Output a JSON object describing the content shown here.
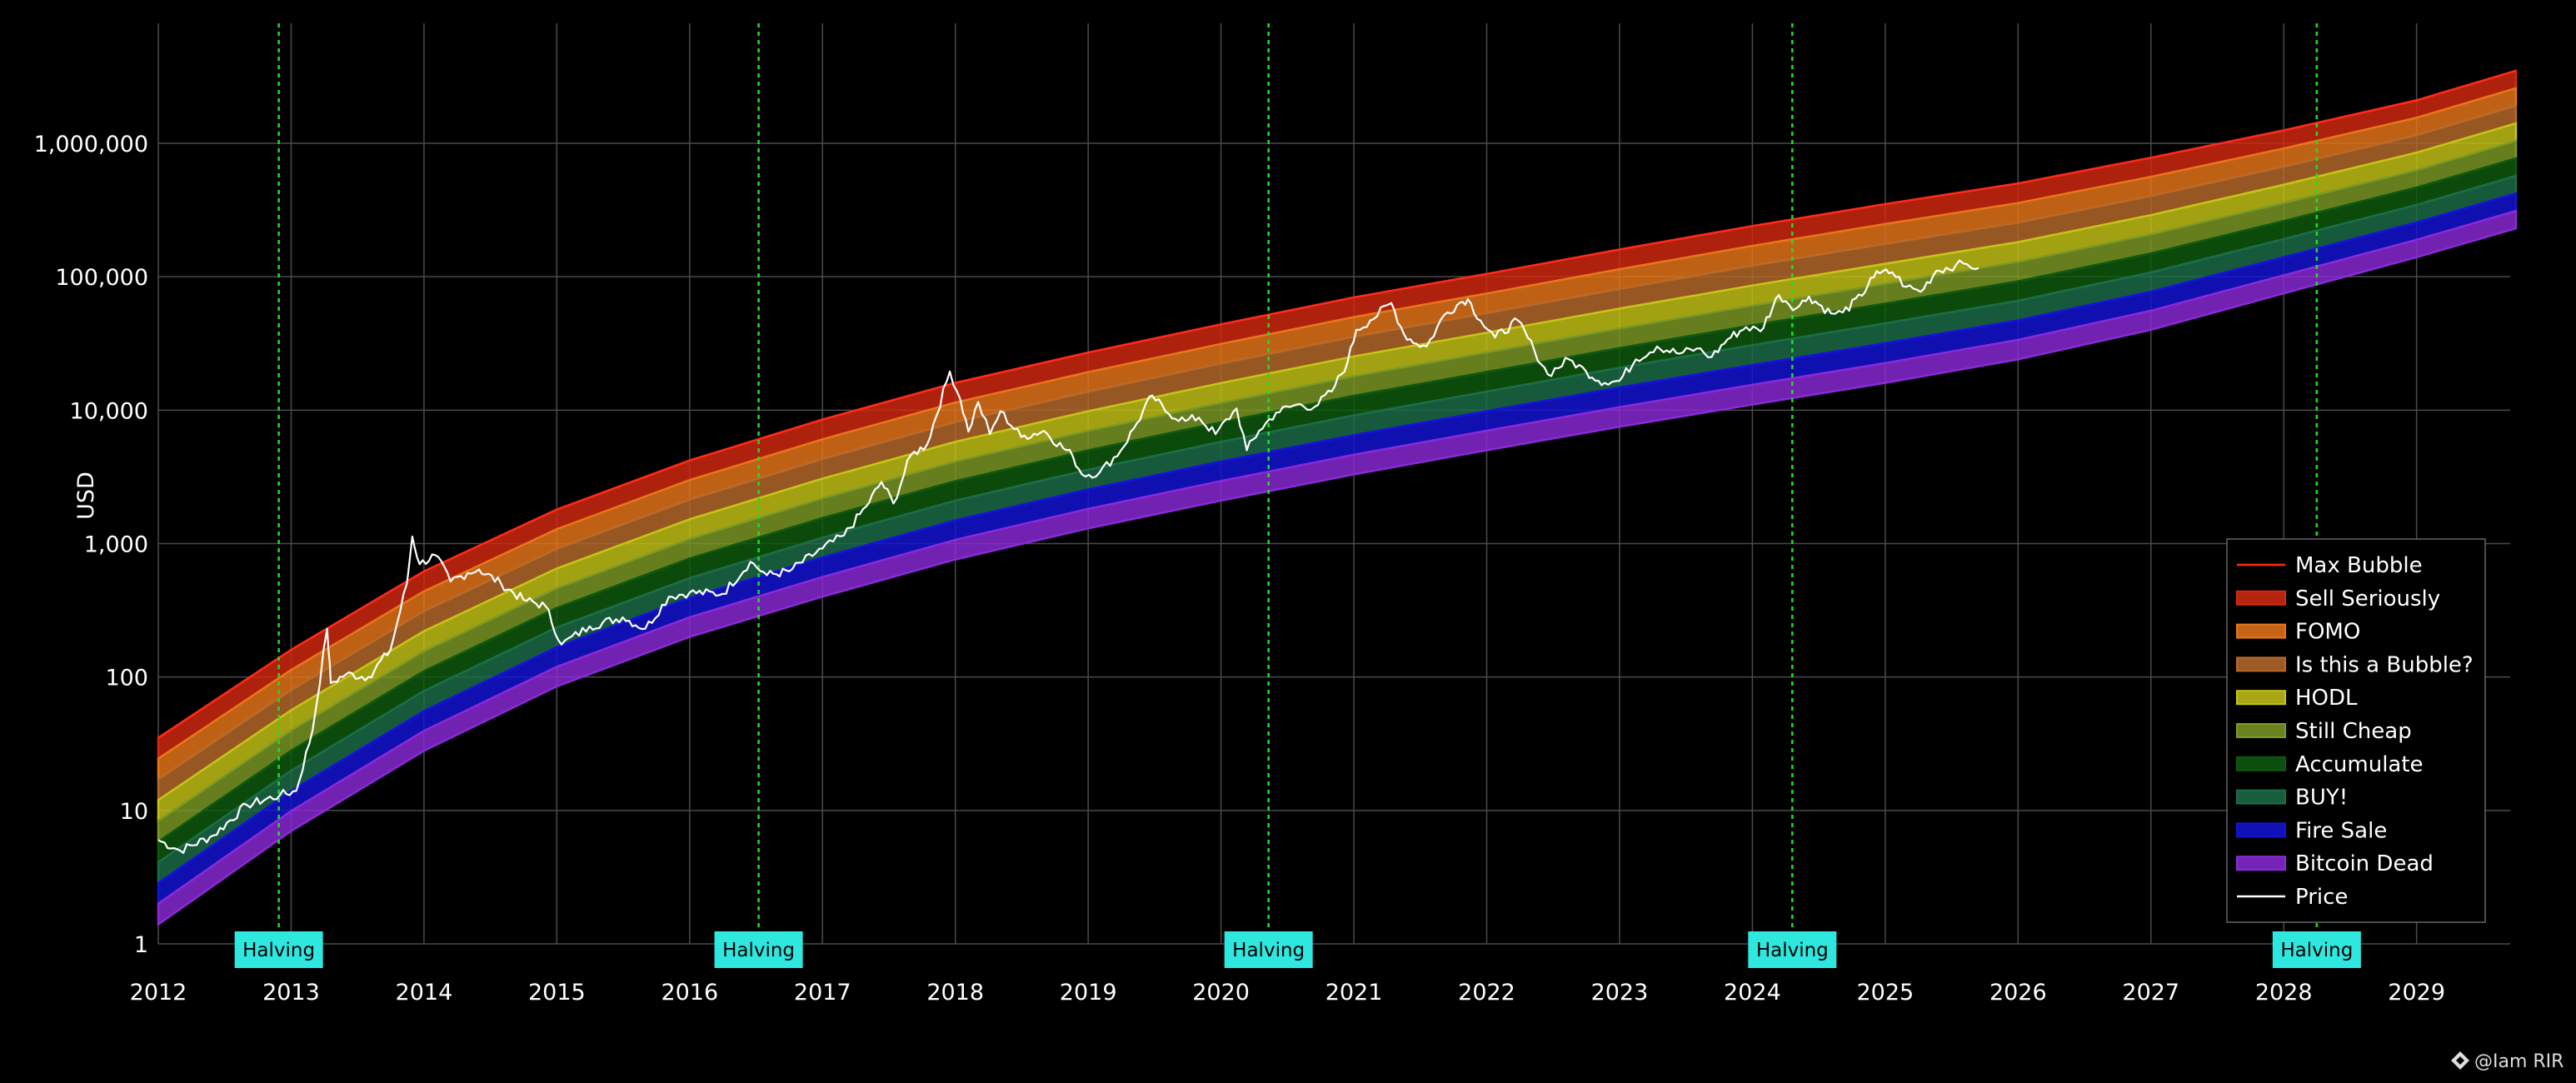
{
  "chart_data": {
    "type": "line",
    "title": "",
    "xlabel": "",
    "ylabel": "USD",
    "y_scale": "log",
    "x_range": [
      "2012-01-01",
      "2029-10-01"
    ],
    "ylim": [
      1,
      5000000
    ],
    "grid": true,
    "background": "#000000",
    "x_ticks": [
      "2012",
      "2013",
      "2014",
      "2015",
      "2016",
      "2017",
      "2018",
      "2019",
      "2020",
      "2021",
      "2022",
      "2023",
      "2024",
      "2025",
      "2026",
      "2027",
      "2028",
      "2029"
    ],
    "y_ticks": [
      {
        "value": 1,
        "label": "1"
      },
      {
        "value": 10,
        "label": "10"
      },
      {
        "value": 100,
        "label": "100"
      },
      {
        "value": 1000,
        "label": "1,000"
      },
      {
        "value": 10000,
        "label": "10,000"
      },
      {
        "value": 100000,
        "label": "100,000"
      },
      {
        "value": 1000000,
        "label": "1,000,000"
      }
    ],
    "halvings": [
      {
        "date": "2012-11-28",
        "label": "Halving"
      },
      {
        "date": "2016-07-09",
        "label": "Halving"
      },
      {
        "date": "2020-05-11",
        "label": "Halving"
      },
      {
        "date": "2024-04-20",
        "label": "Halving"
      },
      {
        "date": "2028-04-01",
        "label": "Halving"
      }
    ],
    "halving_line_color": "#22dd22",
    "halving_label_color": "#2ee8e0",
    "bands_x": [
      "2012-01-01",
      "2013-01-01",
      "2014-01-01",
      "2015-01-01",
      "2016-01-01",
      "2017-01-01",
      "2018-01-01",
      "2019-01-01",
      "2020-01-01",
      "2021-01-01",
      "2022-01-01",
      "2023-01-01",
      "2024-01-01",
      "2025-01-01",
      "2026-01-01",
      "2027-01-01",
      "2028-01-01",
      "2029-01-01",
      "2029-10-01"
    ],
    "bands_y_bottom": [
      1.4,
      7,
      28,
      85,
      200,
      400,
      760,
      1300,
      2100,
      3300,
      5000,
      7500,
      11000,
      16000,
      24000,
      40000,
      75000,
      140000,
      230000
    ],
    "bands_y_top": [
      35,
      160,
      620,
      1800,
      4200,
      8500,
      16000,
      27000,
      44000,
      70000,
      105000,
      160000,
      240000,
      350000,
      500000,
      780000,
      1250000,
      2100000,
      3500000
    ],
    "series": [
      {
        "name": "Max Bubble",
        "color": "#ff2a1a",
        "kind": "line"
      },
      {
        "name": "Sell Seriously",
        "color": "#d42a10",
        "kind": "band"
      },
      {
        "name": "FOMO",
        "color": "#e8761a",
        "kind": "band"
      },
      {
        "name": "Is this a Bubble?",
        "color": "#b86a2a",
        "kind": "band"
      },
      {
        "name": "HODL",
        "color": "#c6c416",
        "kind": "band"
      },
      {
        "name": "Still Cheap",
        "color": "#7d9a24",
        "kind": "band"
      },
      {
        "name": "Accumulate",
        "color": "#0f5a0f",
        "kind": "band"
      },
      {
        "name": "BUY!",
        "color": "#1c6e48",
        "kind": "band"
      },
      {
        "name": "Fire Sale",
        "color": "#1414d8",
        "kind": "band"
      },
      {
        "name": "Bitcoin Dead",
        "color": "#8a2ad8",
        "kind": "band"
      },
      {
        "name": "Price",
        "color": "#ffffff",
        "kind": "price",
        "x": [
          "2012-01-01",
          "2012-03-01",
          "2012-06-01",
          "2012-09-01",
          "2012-12-01",
          "2013-01-15",
          "2013-03-01",
          "2013-04-10",
          "2013-04-20",
          "2013-06-01",
          "2013-08-01",
          "2013-10-01",
          "2013-11-15",
          "2013-11-30",
          "2013-12-20",
          "2014-02-01",
          "2014-03-15",
          "2014-05-01",
          "2014-06-01",
          "2014-08-01",
          "2014-10-01",
          "2014-12-01",
          "2015-01-14",
          "2015-04-01",
          "2015-07-01",
          "2015-09-01",
          "2015-11-05",
          "2016-01-01",
          "2016-04-01",
          "2016-06-16",
          "2016-08-01",
          "2016-10-01",
          "2017-01-01",
          "2017-03-01",
          "2017-05-01",
          "2017-06-12",
          "2017-07-15",
          "2017-09-01",
          "2017-10-15",
          "2017-12-17",
          "2018-01-15",
          "2018-02-06",
          "2018-03-05",
          "2018-04-06",
          "2018-05-05",
          "2018-07-01",
          "2018-09-01",
          "2018-11-20",
          "2018-12-15",
          "2019-02-01",
          "2019-04-01",
          "2019-05-15",
          "2019-06-26",
          "2019-08-01",
          "2019-09-25",
          "2019-11-01",
          "2019-12-17",
          "2020-02-13",
          "2020-03-12",
          "2020-04-15",
          "2020-06-01",
          "2020-07-27",
          "2020-09-15",
          "2020-11-01",
          "2020-12-15",
          "2021-01-08",
          "2021-02-15",
          "2021-04-14",
          "2021-05-19",
          "2021-06-22",
          "2021-07-20",
          "2021-09-07",
          "2021-10-20",
          "2021-11-10",
          "2021-12-15",
          "2022-01-24",
          "2022-03-28",
          "2022-05-12",
          "2022-06-18",
          "2022-08-15",
          "2022-10-01",
          "2022-11-21",
          "2023-01-01",
          "2023-02-15",
          "2023-04-14",
          "2023-06-15",
          "2023-08-01",
          "2023-09-11",
          "2023-10-25",
          "2023-12-15",
          "2024-01-23",
          "2024-03-14",
          "2024-05-01",
          "2024-06-05",
          "2024-08-05",
          "2024-09-06",
          "2024-10-29",
          "2024-11-22",
          "2024-12-17",
          "2025-01-20",
          "2025-02-28",
          "2025-04-08",
          "2025-05-22",
          "2025-07-14",
          "2025-08-14",
          "2025-09-15"
        ],
        "y": [
          6,
          5,
          6.5,
          11,
          13,
          14,
          40,
          230,
          90,
          105,
          100,
          160,
          500,
          1130,
          700,
          820,
          520,
          600,
          640,
          500,
          380,
          340,
          175,
          240,
          280,
          230,
          400,
          430,
          420,
          730,
          580,
          620,
          920,
          1150,
          1900,
          2900,
          2000,
          4600,
          5500,
          19500,
          12000,
          6900,
          11500,
          6600,
          9800,
          6300,
          7000,
          4500,
          3300,
          3400,
          5000,
          8000,
          12900,
          9800,
          8300,
          8800,
          6600,
          10300,
          5000,
          7000,
          9600,
          11000,
          10600,
          13800,
          23000,
          40000,
          47000,
          63500,
          37000,
          31500,
          30000,
          52000,
          64000,
          68000,
          47000,
          35000,
          47000,
          28000,
          18500,
          24000,
          19500,
          16000,
          16600,
          24000,
          30000,
          26500,
          29000,
          25000,
          34000,
          42000,
          39000,
          73000,
          58000,
          71000,
          53000,
          54000,
          72000,
          98000,
          106000,
          108000,
          84000,
          77000,
          111000,
          122000,
          124000,
          116000
        ]
      }
    ],
    "legend": {
      "position": "bottom-right",
      "items": [
        {
          "label": "Max Bubble",
          "swatch": "line",
          "color": "#ff2a1a"
        },
        {
          "label": "Sell Seriously",
          "swatch": "band",
          "color": "#d42a10"
        },
        {
          "label": "FOMO",
          "swatch": "band",
          "color": "#e8761a"
        },
        {
          "label": "Is this a Bubble?",
          "swatch": "band",
          "color": "#b86a2a"
        },
        {
          "label": "HODL",
          "swatch": "band",
          "color": "#c6c416"
        },
        {
          "label": "Still Cheap",
          "swatch": "band",
          "color": "#7d9a24"
        },
        {
          "label": "Accumulate",
          "swatch": "band",
          "color": "#0f5a0f"
        },
        {
          "label": "BUY!",
          "swatch": "band",
          "color": "#1c6e48"
        },
        {
          "label": "Fire Sale",
          "swatch": "band",
          "color": "#1414d8"
        },
        {
          "label": "Bitcoin Dead",
          "swatch": "band",
          "color": "#8a2ad8"
        },
        {
          "label": "Price",
          "swatch": "line",
          "color": "#ffffff"
        }
      ]
    }
  },
  "watermark": {
    "text": "@Iam RIR",
    "icon": "binance-diamond-icon"
  }
}
